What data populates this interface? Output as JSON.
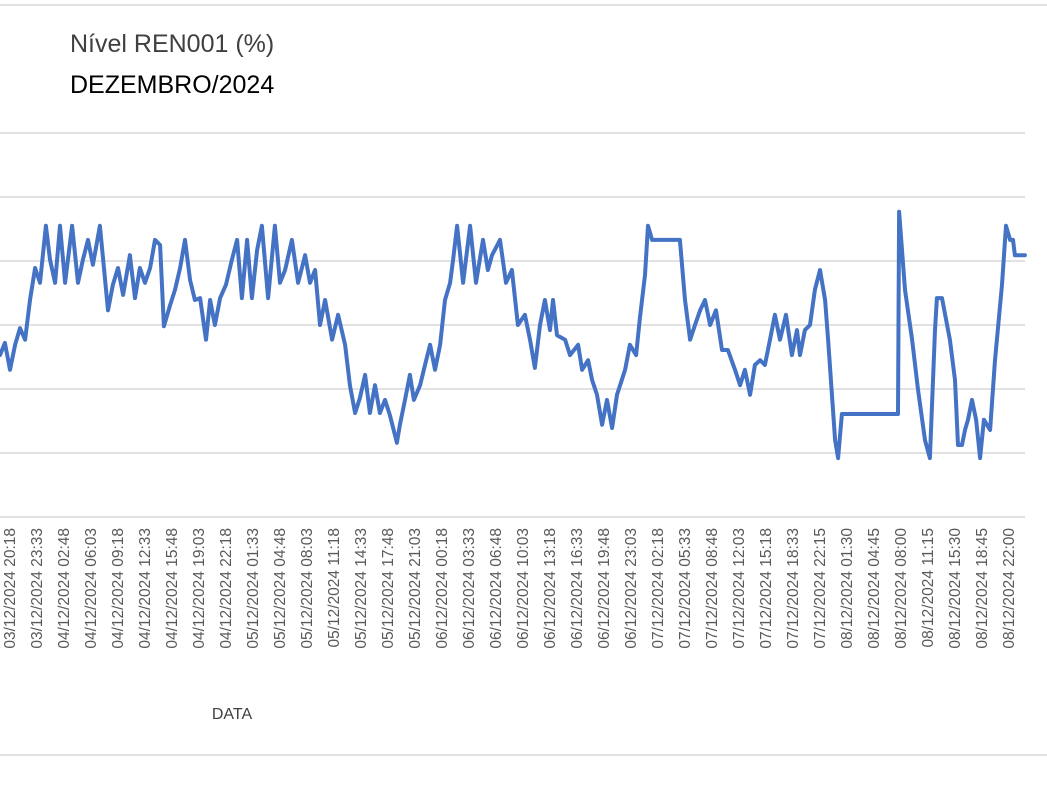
{
  "chart_data": {
    "type": "line",
    "title": "Nível REN001 (%)",
    "subtitle": "DEZEMBRO/2024",
    "xlabel": "DATA",
    "ylabel": "",
    "ylim": [
      0,
      60
    ],
    "y_gridlines": [
      0,
      10,
      20,
      30,
      40,
      50,
      60
    ],
    "y_tick_labels_visible": false,
    "grid": true,
    "legend": "none",
    "line_color": "#4472C4",
    "categories": [
      "03/12/2024 20:18",
      "03/12/2024 23:33",
      "04/12/2024 02:48",
      "04/12/2024 06:03",
      "04/12/2024 09:18",
      "04/12/2024 12:33",
      "04/12/2024 15:48",
      "04/12/2024 19:03",
      "04/12/2024 22:18",
      "05/12/2024 01:33",
      "05/12/2024 04:48",
      "05/12/2024 08:03",
      "05/12/2024 11:18",
      "05/12/2024 14:33",
      "05/12/2024 17:48",
      "05/12/2024 21:03",
      "06/12/2024 00:18",
      "06/12/2024 03:33",
      "06/12/2024 06:48",
      "06/12/2024 10:03",
      "06/12/2024 13:18",
      "06/12/2024 16:33",
      "06/12/2024 19:48",
      "06/12/2024 23:03",
      "07/12/2024 02:18",
      "07/12/2024 05:33",
      "07/12/2024 08:48",
      "07/12/2024 12:03",
      "07/12/2024 15:18",
      "07/12/2024 18:33",
      "07/12/2024 22:15",
      "08/12/2024 01:30",
      "08/12/2024 04:45",
      "08/12/2024 08:00",
      "08/12/2024 11:15",
      "08/12/2024 15:30",
      "08/12/2024 18:45",
      "08/12/2024 22:00"
    ],
    "series": [
      {
        "name": "Nível REN001 (%)",
        "points": [
          [
            -0.37,
            25.3
          ],
          [
            -0.19,
            27.2
          ],
          [
            0,
            23.0
          ],
          [
            0.19,
            26.9
          ],
          [
            0.37,
            29.5
          ],
          [
            0.56,
            27.7
          ],
          [
            0.74,
            33.9
          ],
          [
            0.93,
            38.9
          ],
          [
            1.11,
            36.6
          ],
          [
            1.33,
            45.5
          ],
          [
            1.48,
            40.2
          ],
          [
            1.67,
            36.6
          ],
          [
            1.85,
            45.5
          ],
          [
            2.04,
            36.6
          ],
          [
            2.3,
            45.5
          ],
          [
            2.52,
            36.6
          ],
          [
            2.7,
            40.2
          ],
          [
            2.89,
            43.3
          ],
          [
            3.07,
            39.4
          ],
          [
            3.33,
            45.5
          ],
          [
            3.63,
            32.3
          ],
          [
            3.81,
            36.3
          ],
          [
            4.0,
            38.9
          ],
          [
            4.19,
            34.7
          ],
          [
            4.44,
            40.9
          ],
          [
            4.63,
            34.2
          ],
          [
            4.81,
            38.9
          ],
          [
            5.0,
            36.6
          ],
          [
            5.19,
            38.9
          ],
          [
            5.37,
            43.3
          ],
          [
            5.56,
            42.5
          ],
          [
            5.7,
            29.8
          ],
          [
            5.93,
            33.1
          ],
          [
            6.11,
            35.5
          ],
          [
            6.3,
            38.9
          ],
          [
            6.48,
            43.3
          ],
          [
            6.67,
            37.0
          ],
          [
            6.85,
            33.9
          ],
          [
            7.04,
            34.2
          ],
          [
            7.26,
            27.7
          ],
          [
            7.41,
            33.9
          ],
          [
            7.59,
            30.0
          ],
          [
            7.78,
            34.2
          ],
          [
            8.0,
            36.3
          ],
          [
            8.22,
            40.2
          ],
          [
            8.41,
            43.3
          ],
          [
            8.59,
            34.2
          ],
          [
            8.78,
            43.3
          ],
          [
            8.96,
            34.2
          ],
          [
            9.15,
            41.7
          ],
          [
            9.33,
            45.5
          ],
          [
            9.56,
            34.2
          ],
          [
            9.81,
            45.5
          ],
          [
            10.0,
            36.6
          ],
          [
            10.19,
            38.6
          ],
          [
            10.44,
            43.3
          ],
          [
            10.67,
            36.6
          ],
          [
            10.93,
            40.9
          ],
          [
            11.11,
            36.6
          ],
          [
            11.3,
            38.6
          ],
          [
            11.48,
            30.0
          ],
          [
            11.67,
            33.9
          ],
          [
            11.93,
            27.7
          ],
          [
            12.15,
            31.6
          ],
          [
            12.41,
            26.9
          ],
          [
            12.59,
            20.6
          ],
          [
            12.78,
            16.25
          ],
          [
            12.96,
            18.6
          ],
          [
            13.15,
            22.2
          ],
          [
            13.33,
            16.25
          ],
          [
            13.52,
            20.6
          ],
          [
            13.7,
            16.25
          ],
          [
            13.89,
            18.3
          ],
          [
            14.07,
            15.9
          ],
          [
            14.33,
            11.6
          ],
          [
            14.44,
            14.4
          ],
          [
            14.63,
            18.3
          ],
          [
            14.81,
            22.2
          ],
          [
            14.96,
            18.3
          ],
          [
            15.19,
            20.6
          ],
          [
            15.37,
            23.75
          ],
          [
            15.56,
            26.9
          ],
          [
            15.74,
            23.0
          ],
          [
            15.93,
            26.9
          ],
          [
            16.11,
            33.9
          ],
          [
            16.3,
            36.6
          ],
          [
            16.41,
            40.2
          ],
          [
            16.56,
            45.5
          ],
          [
            16.78,
            36.6
          ],
          [
            17.04,
            45.5
          ],
          [
            17.26,
            36.6
          ],
          [
            17.52,
            43.3
          ],
          [
            17.7,
            38.6
          ],
          [
            17.85,
            40.9
          ],
          [
            18.15,
            43.3
          ],
          [
            18.37,
            36.6
          ],
          [
            18.59,
            38.6
          ],
          [
            18.81,
            30.0
          ],
          [
            19.07,
            31.6
          ],
          [
            19.26,
            27.7
          ],
          [
            19.44,
            23.3
          ],
          [
            19.63,
            30.0
          ],
          [
            19.81,
            33.9
          ],
          [
            20.0,
            29.2
          ],
          [
            20.11,
            33.9
          ],
          [
            20.26,
            28.4
          ],
          [
            20.56,
            27.7
          ],
          [
            20.74,
            25.3
          ],
          [
            21.04,
            26.9
          ],
          [
            21.19,
            23.0
          ],
          [
            21.41,
            24.5
          ],
          [
            21.56,
            21.4
          ],
          [
            21.74,
            19.1
          ],
          [
            21.93,
            14.4
          ],
          [
            22.11,
            18.3
          ],
          [
            22.3,
            13.9
          ],
          [
            22.48,
            19.1
          ],
          [
            22.78,
            23.0
          ],
          [
            22.96,
            26.9
          ],
          [
            23.19,
            25.3
          ],
          [
            23.33,
            31.1
          ],
          [
            23.52,
            37.8
          ],
          [
            23.63,
            45.5
          ],
          [
            23.78,
            43.3
          ],
          [
            24.81,
            43.3
          ],
          [
            25.0,
            33.9
          ],
          [
            25.19,
            27.7
          ],
          [
            25.37,
            30.0
          ],
          [
            25.56,
            32.3
          ],
          [
            25.74,
            33.9
          ],
          [
            25.93,
            30.0
          ],
          [
            26.15,
            32.3
          ],
          [
            26.37,
            26.1
          ],
          [
            26.59,
            26.1
          ],
          [
            26.85,
            23.0
          ],
          [
            27.04,
            20.6
          ],
          [
            27.22,
            23.0
          ],
          [
            27.41,
            19.1
          ],
          [
            27.59,
            23.75
          ],
          [
            27.78,
            24.5
          ],
          [
            27.96,
            23.75
          ],
          [
            28.15,
            27.7
          ],
          [
            28.33,
            31.6
          ],
          [
            28.52,
            27.7
          ],
          [
            28.74,
            31.6
          ],
          [
            28.96,
            25.3
          ],
          [
            29.15,
            29.2
          ],
          [
            29.26,
            25.3
          ],
          [
            29.44,
            29.2
          ],
          [
            29.63,
            30.0
          ],
          [
            29.81,
            35.5
          ],
          [
            30.0,
            38.6
          ],
          [
            30.19,
            33.9
          ],
          [
            30.3,
            27.7
          ],
          [
            30.56,
            12.0
          ],
          [
            30.67,
            9.2
          ],
          [
            30.81,
            16.1
          ],
          [
            32.89,
            16.1
          ],
          [
            32.93,
            47.7
          ],
          [
            33.15,
            35.5
          ],
          [
            33.41,
            27.7
          ],
          [
            33.63,
            19.9
          ],
          [
            33.89,
            12.0
          ],
          [
            34.07,
            9.2
          ],
          [
            34.26,
            29.2
          ],
          [
            34.33,
            34.2
          ],
          [
            34.52,
            34.2
          ],
          [
            34.81,
            27.7
          ],
          [
            35.0,
            21.4
          ],
          [
            35.11,
            11.25
          ],
          [
            35.26,
            11.25
          ],
          [
            35.37,
            13.6
          ],
          [
            35.48,
            15.2
          ],
          [
            35.63,
            18.3
          ],
          [
            35.78,
            15.2
          ],
          [
            35.93,
            9.2
          ],
          [
            36.07,
            15.2
          ],
          [
            36.3,
            13.6
          ],
          [
            36.48,
            24.5
          ],
          [
            36.74,
            36.3
          ],
          [
            36.89,
            45.5
          ],
          [
            37.04,
            43.3
          ],
          [
            37.15,
            43.3
          ],
          [
            37.22,
            40.9
          ],
          [
            37.59,
            40.9
          ]
        ]
      }
    ]
  }
}
